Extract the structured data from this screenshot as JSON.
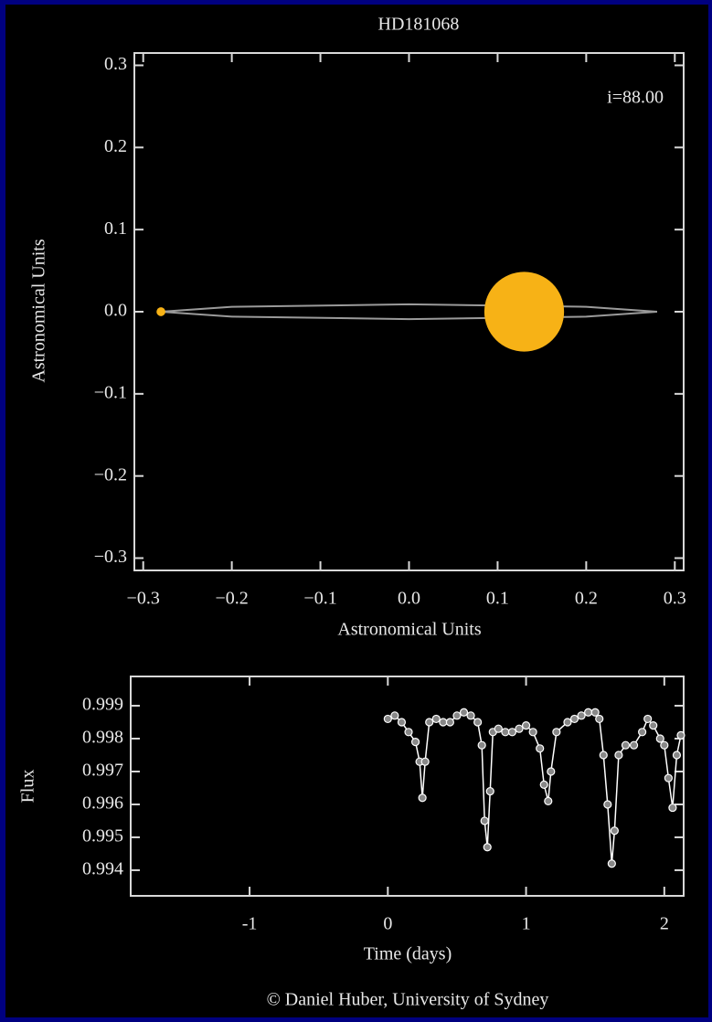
{
  "chart_data": [
    {
      "type": "orbit",
      "title": "HD181068",
      "annotation": "i=88.00",
      "xlabel": "Astronomical Units",
      "ylabel": "Astronomical Units",
      "xlim": [
        -0.31,
        0.31
      ],
      "ylim": [
        -0.315,
        0.315
      ],
      "xticks": [
        {
          "value": -0.3,
          "label": "−0.3"
        },
        {
          "value": -0.2,
          "label": "−0.2"
        },
        {
          "value": -0.1,
          "label": "−0.1"
        },
        {
          "value": 0,
          "label": "0.0"
        },
        0.1,
        0.2,
        0.3
      ],
      "yticks": [
        {
          "value": -0.3,
          "label": "−0.3"
        },
        {
          "value": -0.2,
          "label": "−0.2"
        },
        {
          "value": -0.1,
          "label": "−0.1"
        },
        {
          "value": 0,
          "label": "0.0"
        },
        0.1,
        0.2,
        0.3
      ],
      "orbit": {
        "color": "#9a9a9a",
        "x": [
          -0.28,
          -0.2,
          0,
          0.2,
          0.28,
          0.2,
          0,
          -0.2,
          -0.28
        ],
        "y": [
          0,
          -0.006,
          -0.009,
          -0.006,
          0,
          0.006,
          0.009,
          0.006,
          0
        ]
      },
      "bodies": {
        "color": "#f7b216",
        "x": [
          0.13,
          -0.28
        ],
        "y": [
          0,
          0
        ],
        "radius": [
          0.045,
          0.005
        ]
      }
    },
    {
      "type": "line",
      "xlabel": "Time (days)",
      "ylabel": "Flux",
      "xlim": [
        -1.86,
        2.14
      ],
      "ylim": [
        0.99322,
        0.99989
      ],
      "xticks": [
        -1,
        0,
        1,
        2
      ],
      "yticks": [
        0.994,
        0.995,
        0.996,
        0.997,
        0.998,
        0.999
      ],
      "color": "#ffffff",
      "marker_fill": "#888888",
      "x": [
        0.0,
        0.05,
        0.1,
        0.15,
        0.2,
        0.23,
        0.25,
        0.27,
        0.3,
        0.35,
        0.4,
        0.45,
        0.5,
        0.55,
        0.6,
        0.65,
        0.68,
        0.7,
        0.72,
        0.74,
        0.76,
        0.8,
        0.85,
        0.9,
        0.95,
        1.0,
        1.05,
        1.1,
        1.13,
        1.16,
        1.18,
        1.22,
        1.3,
        1.35,
        1.4,
        1.45,
        1.5,
        1.53,
        1.56,
        1.59,
        1.62,
        1.64,
        1.67,
        1.72,
        1.78,
        1.84,
        1.88,
        1.92,
        1.97,
        2.0,
        2.03,
        2.06,
        2.09,
        2.12
      ],
      "values": [
        0.9986,
        0.9987,
        0.9985,
        0.9982,
        0.9979,
        0.9973,
        0.9962,
        0.9973,
        0.9985,
        0.9986,
        0.9985,
        0.9985,
        0.9987,
        0.9988,
        0.9987,
        0.9985,
        0.9978,
        0.9955,
        0.9947,
        0.9964,
        0.9982,
        0.9983,
        0.9982,
        0.9982,
        0.9983,
        0.9984,
        0.9982,
        0.9977,
        0.9966,
        0.9961,
        0.997,
        0.9982,
        0.9985,
        0.9986,
        0.9987,
        0.9988,
        0.9988,
        0.9986,
        0.9975,
        0.996,
        0.9942,
        0.9952,
        0.9975,
        0.9978,
        0.9978,
        0.9982,
        0.9986,
        0.9984,
        0.998,
        0.9978,
        0.9968,
        0.9959,
        0.9975,
        0.9981
      ]
    }
  ],
  "caption": "© Daniel Huber, University of Sydney"
}
